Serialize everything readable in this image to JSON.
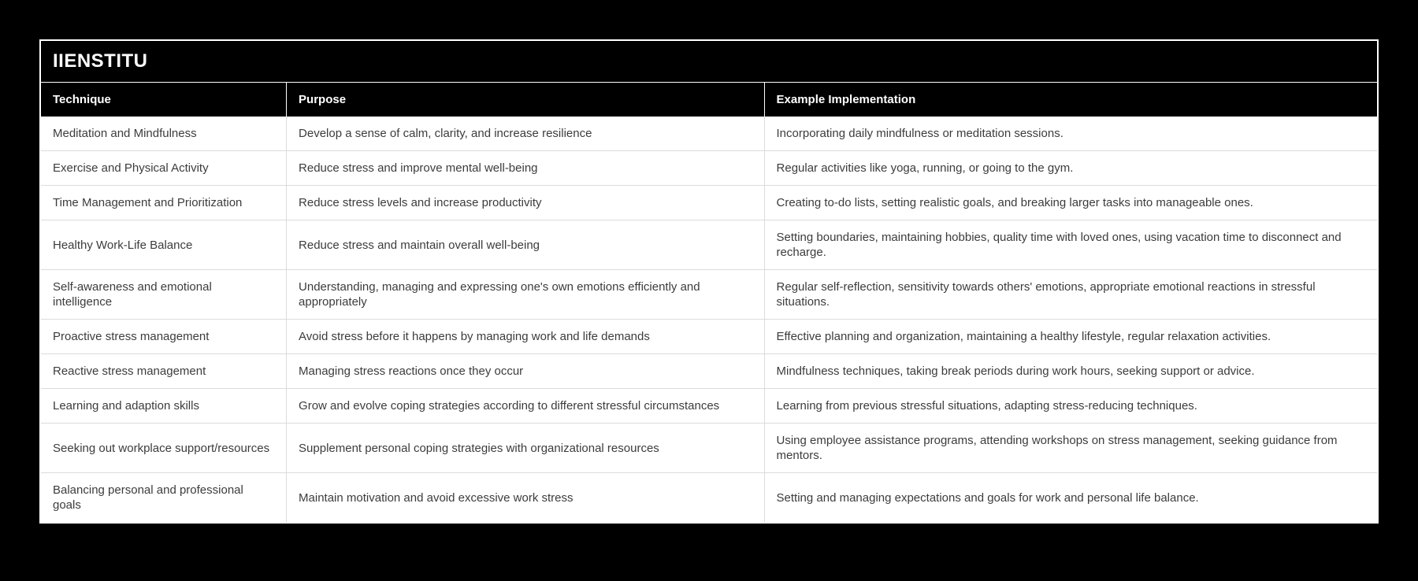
{
  "page": {
    "background_color": "#000000",
    "card_border_color": "#ffffff",
    "header_bg_color": "#000000",
    "header_text_color": "#ffffff",
    "body_bg_color": "#ffffff",
    "body_text_color": "#3c3c3c",
    "divider_color": "#dcdcdc"
  },
  "table": {
    "title": "IIENSTITU",
    "columns": [
      "Technique",
      "Purpose",
      "Example Implementation"
    ],
    "rows": [
      {
        "technique": "Meditation and Mindfulness",
        "purpose": "Develop a sense of calm, clarity, and increase resilience",
        "example": "Incorporating daily mindfulness or meditation sessions."
      },
      {
        "technique": "Exercise and Physical Activity",
        "purpose": "Reduce stress and improve mental well-being",
        "example": "Regular activities like yoga, running, or going to the gym."
      },
      {
        "technique": "Time Management and Prioritization",
        "purpose": "Reduce stress levels and increase productivity",
        "example": "Creating to-do lists, setting realistic goals, and breaking larger tasks into manageable ones."
      },
      {
        "technique": "Healthy Work-Life Balance",
        "purpose": "Reduce stress and maintain overall well-being",
        "example": "Setting boundaries, maintaining hobbies, quality time with loved ones, using vacation time to disconnect and recharge."
      },
      {
        "technique": "Self-awareness and emotional intelligence",
        "purpose": "Understanding, managing and expressing one's own emotions efficiently and appropriately",
        "example": "Regular self-reflection, sensitivity towards others' emotions, appropriate emotional reactions in stressful situations."
      },
      {
        "technique": "Proactive stress management",
        "purpose": "Avoid stress before it happens by managing work and life demands",
        "example": "Effective planning and organization, maintaining a healthy lifestyle, regular relaxation activities."
      },
      {
        "technique": "Reactive stress management",
        "purpose": "Managing stress reactions once they occur",
        "example": "Mindfulness techniques, taking break periods during work hours, seeking support or advice."
      },
      {
        "technique": "Learning and adaption skills",
        "purpose": "Grow and evolve coping strategies according to different stressful circumstances",
        "example": "Learning from previous stressful situations, adapting stress-reducing techniques."
      },
      {
        "technique": "Seeking out workplace support/resources",
        "purpose": "Supplement personal coping strategies with organizational resources",
        "example": "Using employee assistance programs, attending workshops on stress management, seeking guidance from mentors."
      },
      {
        "technique": "Balancing personal and professional goals",
        "purpose": "Maintain motivation and avoid excessive work stress",
        "example": "Setting and managing expectations and goals for work and personal life balance."
      }
    ]
  }
}
